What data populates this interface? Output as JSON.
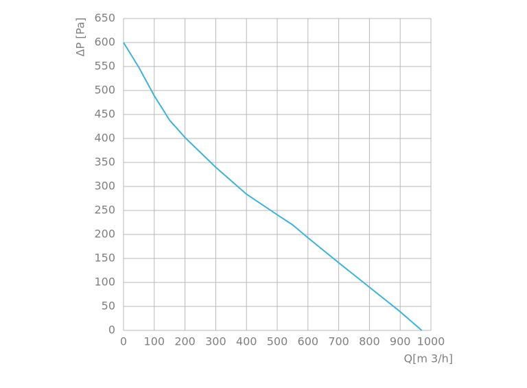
{
  "chart_data": {
    "type": "line",
    "y_label": "ΔP [Pa]",
    "x_label": "Q[m 3/h]",
    "x": [
      0,
      50,
      100,
      150,
      200,
      300,
      400,
      500,
      550,
      600,
      700,
      800,
      900,
      970
    ],
    "series": [
      {
        "color": "#3bb3d9",
        "values": [
          600,
          548,
          489,
          438,
          402,
          340,
          284,
          241,
          220,
          193,
          141,
          90,
          39,
          0
        ]
      }
    ],
    "xlim": [
      0,
      1000
    ],
    "xticks": [
      0,
      100,
      200,
      300,
      400,
      500,
      600,
      700,
      800,
      900,
      1000
    ],
    "ylim": [
      0,
      650
    ],
    "yticks": [
      0,
      50,
      100,
      150,
      200,
      250,
      300,
      350,
      400,
      450,
      500,
      550,
      600,
      650
    ],
    "grid": true
  }
}
